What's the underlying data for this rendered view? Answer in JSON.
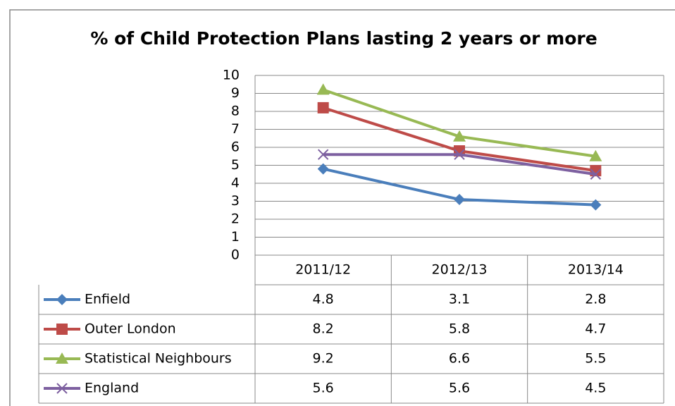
{
  "chart_data": {
    "type": "line",
    "title": "% of Child Protection Plans lasting 2 years or more",
    "categories": [
      "2011/12",
      "2012/13",
      "2013/14"
    ],
    "series": [
      {
        "name": "Enfield",
        "color": "#4a7ebb",
        "marker": "diamond",
        "values": [
          4.8,
          3.1,
          2.8
        ]
      },
      {
        "name": "Outer London",
        "color": "#be4b48",
        "marker": "square",
        "values": [
          8.2,
          5.8,
          4.7
        ]
      },
      {
        "name": "Statistical Neighbours",
        "color": "#98b954",
        "marker": "triangle",
        "values": [
          9.2,
          6.6,
          5.5
        ]
      },
      {
        "name": "England",
        "color": "#7d60a0",
        "marker": "x",
        "values": [
          5.6,
          5.6,
          4.5
        ]
      }
    ],
    "ylim": [
      0,
      10
    ],
    "yticks": [
      0,
      1,
      2,
      3,
      4,
      5,
      6,
      7,
      8,
      9,
      10
    ],
    "grid": true,
    "data_table": true
  }
}
